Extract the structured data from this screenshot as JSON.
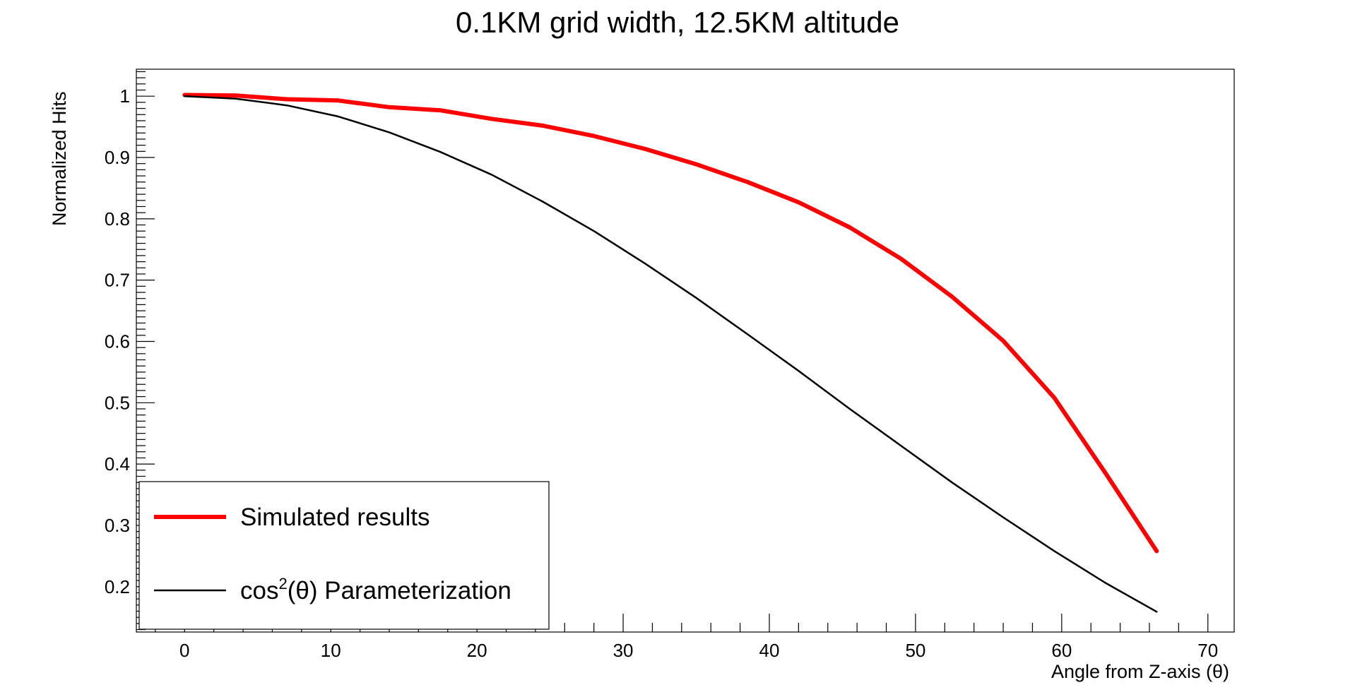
{
  "chart_data": {
    "type": "line",
    "title": "0.1KM grid width, 12.5KM altitude",
    "xlabel": "Angle from Z-axis (θ)",
    "ylabel": "Normalized Hits",
    "xlim": [
      -3.3,
      71.8
    ],
    "ylim": [
      0.126,
      1.044
    ],
    "x_ticks": [
      0,
      10,
      20,
      30,
      40,
      50,
      60,
      70
    ],
    "y_ticks": [
      0.2,
      0.3,
      0.4,
      0.5,
      0.6,
      0.7,
      0.8,
      0.9,
      1
    ],
    "grid": false,
    "legend_position": "bottom-left",
    "series": [
      {
        "name": "Simulated results",
        "color": "#ff0000",
        "x": [
          0,
          3.5,
          7,
          10.5,
          14,
          17.5,
          21,
          24.5,
          28,
          31.5,
          35,
          38.5,
          42,
          45.5,
          49,
          52.5,
          56,
          59.5,
          63,
          66.5
        ],
        "y": [
          1.002,
          1.001,
          0.995,
          0.993,
          0.982,
          0.977,
          0.963,
          0.952,
          0.935,
          0.914,
          0.889,
          0.86,
          0.827,
          0.786,
          0.735,
          0.673,
          0.601,
          0.508,
          0.385,
          0.258
        ]
      },
      {
        "name": "cos2(θ) Parameterization",
        "color": "#000000",
        "x": [
          0,
          3.5,
          7,
          10.5,
          14,
          17.5,
          21,
          24.5,
          28,
          31.5,
          35,
          38.5,
          42,
          45.5,
          49,
          52.5,
          56,
          59.5,
          63,
          66.5
        ],
        "y": [
          1.0,
          0.996,
          0.985,
          0.967,
          0.941,
          0.909,
          0.872,
          0.828,
          0.78,
          0.727,
          0.671,
          0.612,
          0.552,
          0.49,
          0.43,
          0.37,
          0.313,
          0.258,
          0.206,
          0.159
        ]
      }
    ],
    "legend": {
      "simulated_label": "Simulated results",
      "cos_label_prefix": "cos",
      "cos_label_sup": "2",
      "cos_label_suffix": "(θ) Parameterization"
    }
  }
}
